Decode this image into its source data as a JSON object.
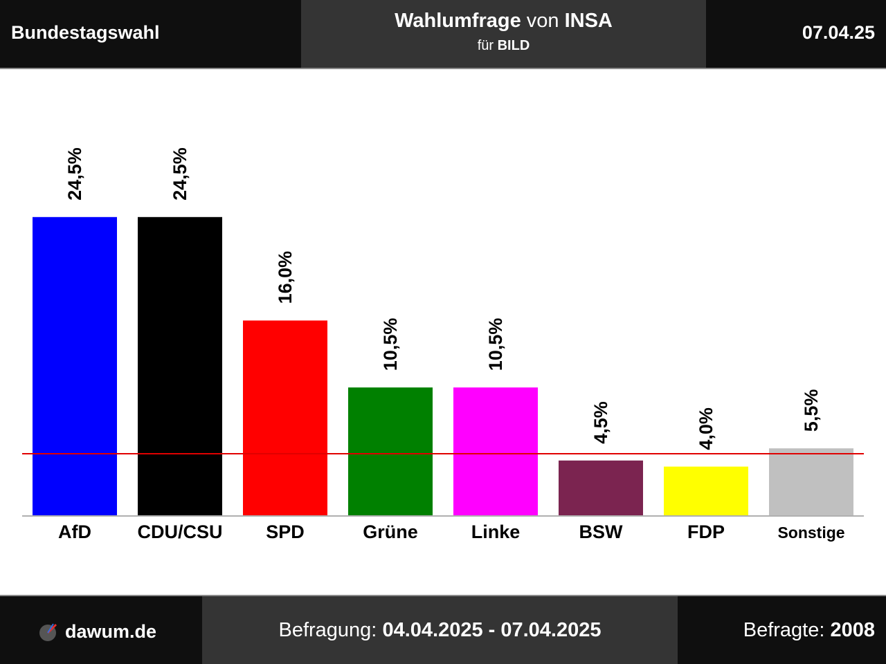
{
  "header": {
    "title": "Bundestagswahl",
    "poll_label": "Wahlumfrage",
    "poll_by": "von",
    "institute": "INSA",
    "client_prefix": "für",
    "client": "BILD",
    "date": "07.04.25"
  },
  "footer": {
    "site": "dawum.de",
    "period_label": "Befragung:",
    "period": "04.04.2025 - 07.04.2025",
    "respondents_label": "Befragte:",
    "respondents": "2008"
  },
  "chart_data": {
    "type": "bar",
    "categories": [
      "AfD",
      "CDU/CSU",
      "SPD",
      "Grüne",
      "Linke",
      "BSW",
      "FDP",
      "Sonstige"
    ],
    "values": [
      24.5,
      24.5,
      16.0,
      10.5,
      10.5,
      4.5,
      4.0,
      5.5
    ],
    "value_labels": [
      "24,5%",
      "24,5%",
      "16,0%",
      "10,5%",
      "10,5%",
      "4,5%",
      "4,0%",
      "5,5%"
    ],
    "colors": [
      "#0000ff",
      "#000000",
      "#ff0000",
      "#008000",
      "#ff00ff",
      "#7b2450",
      "#ffff00",
      "#c0c0c0"
    ],
    "threshold": 5,
    "threshold_color": "#e00000",
    "ylim": [
      0,
      30
    ],
    "grid": false
  }
}
